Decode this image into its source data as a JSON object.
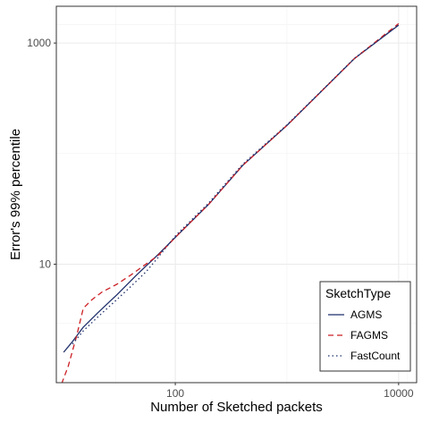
{
  "chart_data": {
    "type": "line",
    "xlabel": "Number of Sketched packets",
    "ylabel": "Error's 99% percentile",
    "xscale": "log10",
    "yscale": "log10",
    "xlim": [
      8.6,
      14500
    ],
    "ylim": [
      0.85,
      2150
    ],
    "grid": true,
    "legend_position": "bottom-right",
    "x_ticks": [
      {
        "value": 100,
        "label": "100"
      },
      {
        "value": 10000,
        "label": "10000"
      }
    ],
    "y_ticks": [
      {
        "value": 10,
        "label": "10"
      },
      {
        "value": 1000,
        "label": "1000"
      }
    ],
    "legend_title": "SketchType",
    "series": [
      {
        "name": "AGMS",
        "color": "#1f2f6b",
        "dash": "solid",
        "x": [
          10,
          12,
          15,
          20,
          30,
          45,
          70,
          100,
          200,
          400,
          1000,
          2000,
          4000,
          10000
        ],
        "y": [
          1.6,
          2.0,
          2.7,
          3.6,
          5.3,
          8.0,
          12.2,
          17.5,
          35,
          78,
          180,
          360,
          720,
          1450
        ]
      },
      {
        "name": "FAGMS",
        "color": "#cc1f24",
        "dash": "dashed",
        "x": [
          9,
          11,
          13,
          15,
          18,
          22,
          30,
          40,
          70,
          100,
          200,
          400,
          1000,
          2000,
          4000,
          10000
        ],
        "y": [
          0.7,
          1.2,
          2.2,
          4.0,
          4.8,
          5.6,
          6.6,
          8.0,
          12.0,
          17.5,
          35,
          78,
          180,
          360,
          720,
          1500
        ]
      },
      {
        "name": "FastCount",
        "color": "#1f2f6b",
        "dash": "dotted",
        "x": [
          12,
          15,
          20,
          30,
          40,
          55,
          70,
          100,
          200,
          400,
          1000,
          2000,
          4000,
          10000
        ],
        "y": [
          1.9,
          2.5,
          3.3,
          4.8,
          6.3,
          8.6,
          11.5,
          18.0,
          36,
          80,
          182,
          362,
          725,
          1460
        ]
      }
    ]
  }
}
